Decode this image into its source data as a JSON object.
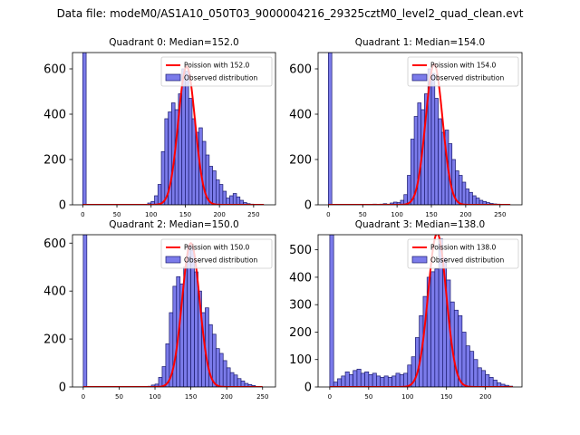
{
  "figure": {
    "suptitle": "Data file: modeM0/AS1A10_050T03_9000004216_29325cztM0_level2_quad_clean.evt"
  },
  "colors": {
    "bar_fill": "#7b7bea",
    "bar_edge": "#1a1a6e",
    "poisson_line": "#ff0000",
    "axis": "#000000"
  },
  "chart_data": [
    {
      "type": "bar",
      "title": "Quadrant 0: Median=152.0",
      "xlim": [
        -15,
        282
      ],
      "ylim": [
        0,
        672
      ],
      "xticks": [
        0,
        50,
        100,
        150,
        200,
        250
      ],
      "yticks": [
        0,
        200,
        400,
        600
      ],
      "bin_width": 5,
      "bins": [
        [
          0,
          672
        ],
        [
          95,
          8
        ],
        [
          100,
          15
        ],
        [
          105,
          40
        ],
        [
          110,
          90
        ],
        [
          115,
          235
        ],
        [
          120,
          380
        ],
        [
          125,
          410
        ],
        [
          130,
          450
        ],
        [
          135,
          420
        ],
        [
          140,
          490
        ],
        [
          145,
          600
        ],
        [
          150,
          590
        ],
        [
          155,
          470
        ],
        [
          160,
          380
        ],
        [
          165,
          320
        ],
        [
          170,
          340
        ],
        [
          175,
          280
        ],
        [
          180,
          220
        ],
        [
          185,
          170
        ],
        [
          190,
          150
        ],
        [
          195,
          110
        ],
        [
          200,
          90
        ],
        [
          205,
          60
        ],
        [
          210,
          30
        ],
        [
          215,
          40
        ],
        [
          220,
          50
        ],
        [
          225,
          35
        ],
        [
          230,
          20
        ],
        [
          235,
          10
        ],
        [
          240,
          5
        ],
        [
          245,
          3
        ]
      ],
      "poisson": {
        "label": "Poission with 152.0",
        "mean": 152.0,
        "peak": 610,
        "sigma": 12.3,
        "x_range": [
          0,
          265
        ]
      },
      "legend": {
        "position": "top-right",
        "line_label": "Poission with 152.0",
        "bar_label": "Observed distribution"
      }
    },
    {
      "type": "bar",
      "title": "Quadrant 1: Median=154.0",
      "xlim": [
        -15,
        282
      ],
      "ylim": [
        0,
        672
      ],
      "xticks": [
        0,
        50,
        100,
        150,
        200,
        250
      ],
      "yticks": [
        0,
        200,
        400,
        600
      ],
      "bin_width": 5,
      "bins": [
        [
          0,
          672
        ],
        [
          50,
          2
        ],
        [
          65,
          3
        ],
        [
          75,
          3
        ],
        [
          80,
          5
        ],
        [
          85,
          3
        ],
        [
          90,
          8
        ],
        [
          95,
          12
        ],
        [
          100,
          10
        ],
        [
          105,
          20
        ],
        [
          110,
          45
        ],
        [
          115,
          130
        ],
        [
          120,
          290
        ],
        [
          125,
          390
        ],
        [
          130,
          450
        ],
        [
          135,
          420
        ],
        [
          140,
          490
        ],
        [
          145,
          600
        ],
        [
          150,
          580
        ],
        [
          155,
          470
        ],
        [
          160,
          380
        ],
        [
          165,
          320
        ],
        [
          170,
          330
        ],
        [
          175,
          270
        ],
        [
          180,
          200
        ],
        [
          185,
          150
        ],
        [
          190,
          130
        ],
        [
          195,
          100
        ],
        [
          200,
          70
        ],
        [
          205,
          55
        ],
        [
          210,
          40
        ],
        [
          215,
          30
        ],
        [
          220,
          20
        ],
        [
          225,
          15
        ],
        [
          230,
          10
        ],
        [
          235,
          6
        ],
        [
          240,
          4
        ],
        [
          245,
          3
        ]
      ],
      "poisson": {
        "label": "Poission with 154.0",
        "mean": 154.0,
        "peak": 620,
        "sigma": 12.4,
        "x_range": [
          0,
          265
        ]
      },
      "legend": {
        "position": "top-right",
        "line_label": "Poission with 154.0",
        "bar_label": "Observed distribution"
      }
    },
    {
      "type": "bar",
      "title": "Quadrant 2: Median=150.0",
      "xlim": [
        -15,
        268
      ],
      "ylim": [
        0,
        635
      ],
      "xticks": [
        0,
        50,
        100,
        150,
        200,
        250
      ],
      "yticks": [
        0,
        200,
        400,
        600
      ],
      "bin_width": 5,
      "bins": [
        [
          0,
          635
        ],
        [
          90,
          3
        ],
        [
          95,
          8
        ],
        [
          100,
          12
        ],
        [
          105,
          40
        ],
        [
          110,
          85
        ],
        [
          115,
          180
        ],
        [
          120,
          310
        ],
        [
          125,
          420
        ],
        [
          130,
          460
        ],
        [
          135,
          430
        ],
        [
          140,
          500
        ],
        [
          145,
          590
        ],
        [
          150,
          570
        ],
        [
          155,
          480
        ],
        [
          160,
          400
        ],
        [
          165,
          310
        ],
        [
          170,
          330
        ],
        [
          175,
          260
        ],
        [
          180,
          220
        ],
        [
          185,
          160
        ],
        [
          190,
          140
        ],
        [
          195,
          110
        ],
        [
          200,
          80
        ],
        [
          205,
          60
        ],
        [
          210,
          50
        ],
        [
          215,
          35
        ],
        [
          220,
          25
        ],
        [
          225,
          15
        ],
        [
          230,
          10
        ],
        [
          235,
          6
        ]
      ],
      "poisson": {
        "label": "Poission with 150.0",
        "mean": 150.0,
        "peak": 600,
        "sigma": 12.2,
        "x_range": [
          0,
          250
        ]
      },
      "legend": {
        "position": "top-right",
        "line_label": "Poission with 150.0",
        "bar_label": "Observed distribution"
      }
    },
    {
      "type": "bar",
      "title": "Quadrant 3: Median=138.0",
      "xlim": [
        -15,
        247
      ],
      "ylim": [
        0,
        555
      ],
      "xticks": [
        0,
        50,
        100,
        150,
        200
      ],
      "yticks": [
        0,
        100,
        200,
        300,
        400,
        500
      ],
      "bin_width": 5,
      "bins": [
        [
          0,
          555
        ],
        [
          5,
          18
        ],
        [
          10,
          30
        ],
        [
          15,
          40
        ],
        [
          20,
          55
        ],
        [
          25,
          45
        ],
        [
          30,
          60
        ],
        [
          35,
          65
        ],
        [
          40,
          50
        ],
        [
          45,
          55
        ],
        [
          50,
          45
        ],
        [
          55,
          50
        ],
        [
          60,
          40
        ],
        [
          65,
          35
        ],
        [
          70,
          40
        ],
        [
          75,
          35
        ],
        [
          80,
          40
        ],
        [
          85,
          50
        ],
        [
          90,
          45
        ],
        [
          95,
          50
        ],
        [
          100,
          80
        ],
        [
          105,
          110
        ],
        [
          110,
          180
        ],
        [
          115,
          260
        ],
        [
          120,
          330
        ],
        [
          125,
          400
        ],
        [
          130,
          420
        ],
        [
          135,
          430
        ],
        [
          140,
          540
        ],
        [
          145,
          470
        ],
        [
          150,
          390
        ],
        [
          155,
          310
        ],
        [
          160,
          280
        ],
        [
          165,
          260
        ],
        [
          170,
          200
        ],
        [
          175,
          150
        ],
        [
          180,
          130
        ],
        [
          185,
          100
        ],
        [
          190,
          70
        ],
        [
          195,
          60
        ],
        [
          200,
          45
        ],
        [
          205,
          35
        ],
        [
          210,
          25
        ],
        [
          215,
          15
        ],
        [
          220,
          10
        ],
        [
          225,
          6
        ],
        [
          230,
          3
        ]
      ],
      "poisson": {
        "label": "Poission with 138.0",
        "mean": 138.0,
        "peak": 560,
        "sigma": 11.7,
        "x_range": [
          0,
          235
        ]
      },
      "legend": {
        "position": "top-right",
        "line_label": "Poission with 138.0",
        "bar_label": "Observed distribution"
      }
    }
  ]
}
